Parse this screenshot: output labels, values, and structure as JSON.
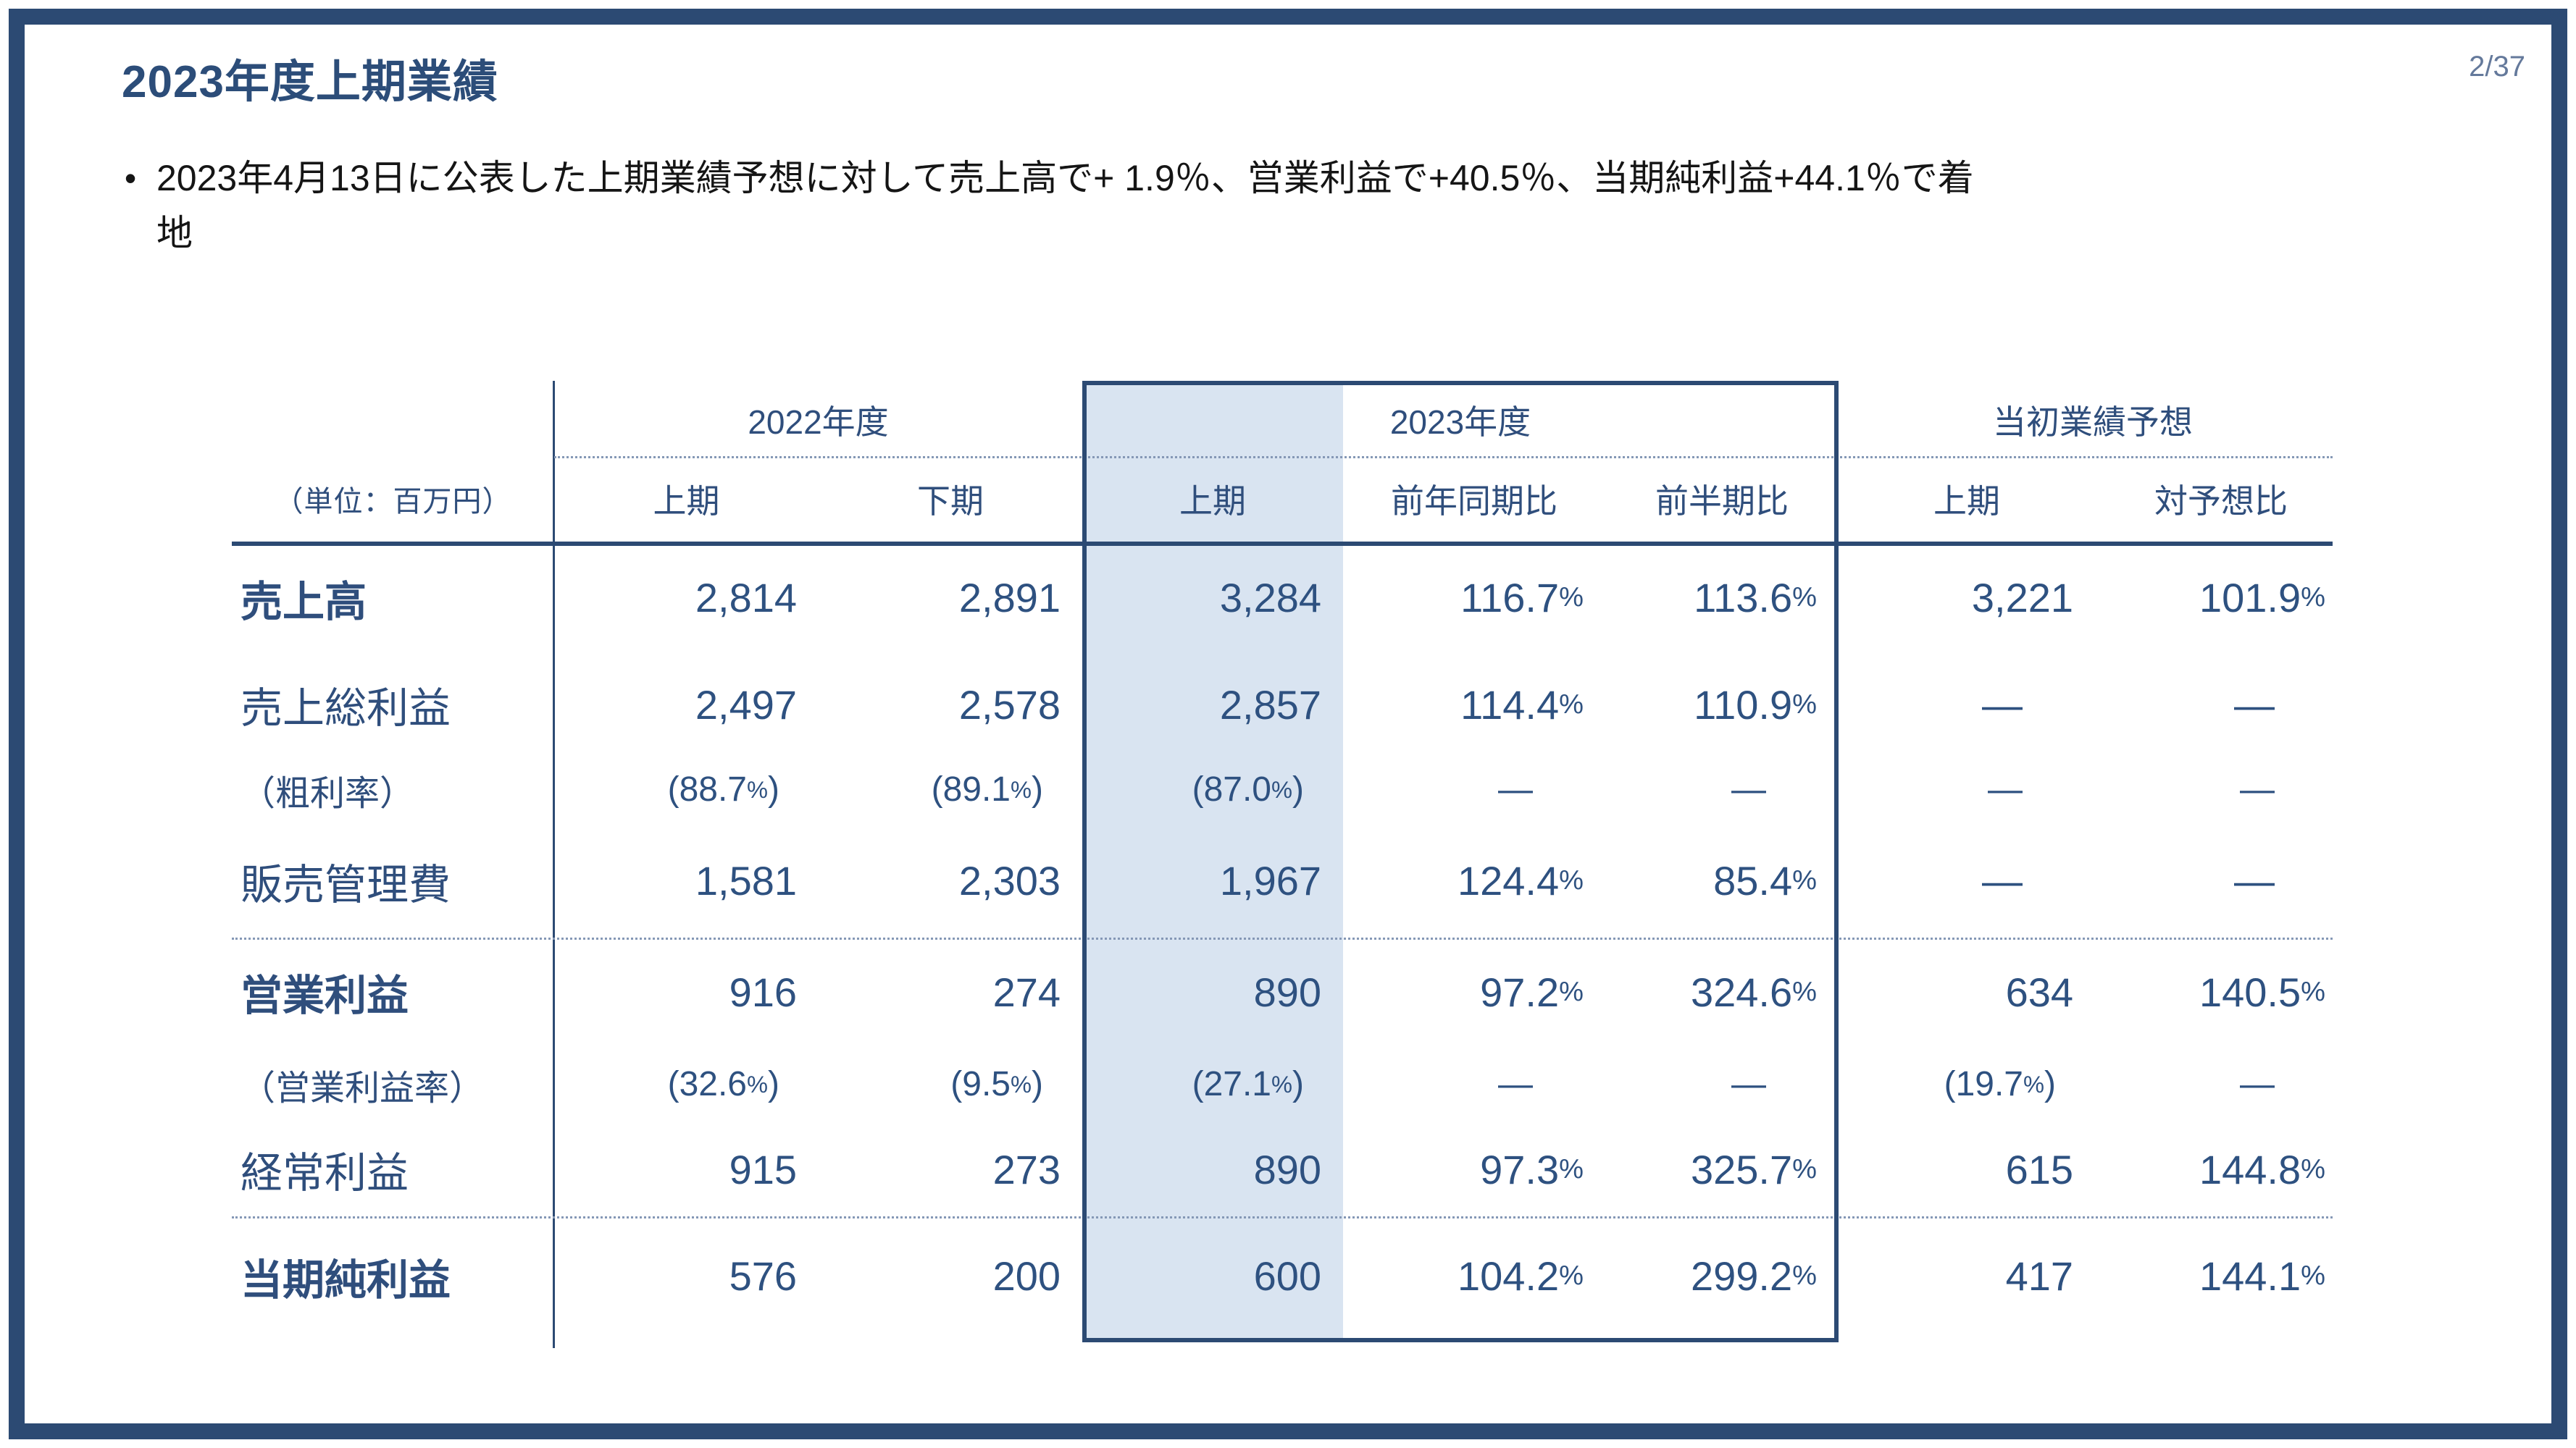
{
  "page": {
    "title": "2023年度上期業績",
    "page_number": "2/37"
  },
  "bullet": {
    "marker": "•",
    "lines": [
      "2023年4月13日に公表した上期業績予想に対して売上高で+ 1.9％、営業利益で+40.5％、当期純利益+44.1％で着",
      "地"
    ]
  },
  "table": {
    "unit_label": "（単位：百万円）",
    "col_groups": [
      {
        "label": "2022年度"
      },
      {
        "label": "2023年度"
      },
      {
        "label": "当初業績予想"
      }
    ],
    "columns": [
      "上期",
      "下期",
      "上期",
      "前年同期比",
      "前半期比",
      "上期",
      "対予想比"
    ],
    "rows": [
      {
        "label": "売上高",
        "values": [
          "2,814",
          "2,891",
          "3,284",
          "116.7%",
          "113.6%",
          "3,221",
          "101.9%"
        ]
      },
      {
        "label": "売上総利益",
        "values": [
          "2,497",
          "2,578",
          "2,857",
          "114.4%",
          "110.9%",
          "—",
          "—"
        ]
      },
      {
        "label": "（粗利率）",
        "values": [
          "(88.7%)",
          "(89.1%)",
          "(87.0%)",
          "—",
          "—",
          "—",
          "—"
        ]
      },
      {
        "label": "販売管理費",
        "values": [
          "1,581",
          "2,303",
          "1,967",
          "124.4%",
          "85.4%",
          "—",
          "—"
        ]
      },
      {
        "label": "営業利益",
        "values": [
          "916",
          "274",
          "890",
          "97.2%",
          "324.6%",
          "634",
          "140.5%"
        ]
      },
      {
        "label": "（営業利益率）",
        "values": [
          "(32.6%)",
          "(9.5%)",
          "(27.1%)",
          "—",
          "—",
          "(19.7%)",
          "—"
        ]
      },
      {
        "label": "経常利益",
        "values": [
          "915",
          "273",
          "890",
          "97.3%",
          "325.7%",
          "615",
          "144.8%"
        ]
      },
      {
        "label": "当期純利益",
        "values": [
          "576",
          "200",
          "600",
          "104.2%",
          "299.2%",
          "417",
          "144.1%"
        ]
      }
    ],
    "colors": {
      "accent": "#2c4a73",
      "highlight": "#d9e4f1",
      "text": "#2e5180"
    }
  }
}
